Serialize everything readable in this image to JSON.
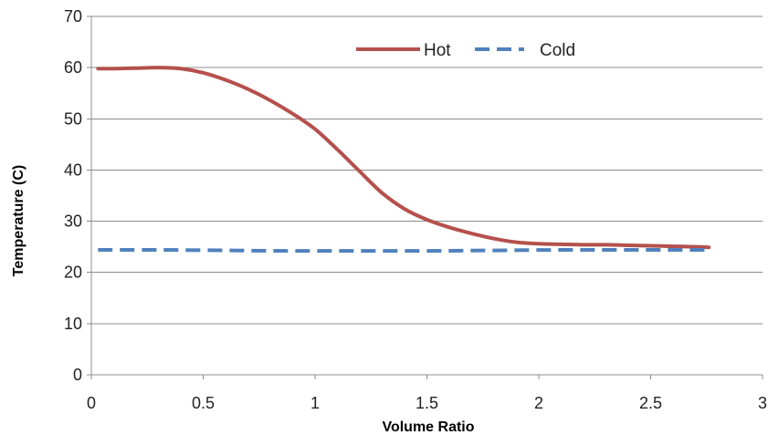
{
  "chart_data": {
    "type": "line",
    "title": "",
    "xlabel": "Volume Ratio",
    "ylabel": "Temperature (C)",
    "xlim": [
      0,
      3
    ],
    "ylim": [
      0,
      70
    ],
    "x_ticks": [
      0,
      0.5,
      1,
      1.5,
      2,
      2.5,
      3
    ],
    "x_tick_labels": [
      "0",
      "0.5",
      "1",
      "1.5",
      "2",
      "2.5",
      "3"
    ],
    "y_ticks": [
      0,
      10,
      20,
      30,
      40,
      50,
      60,
      70
    ],
    "y_tick_labels": [
      "0",
      "10",
      "20",
      "30",
      "40",
      "50",
      "60",
      "70"
    ],
    "grid": "horizontal",
    "legend_position": "top-right",
    "series": [
      {
        "name": "Hot",
        "color": "#b5504c",
        "style": "solid",
        "x": [
          0.03,
          0.1,
          0.2,
          0.3,
          0.4,
          0.5,
          0.6,
          0.7,
          0.8,
          0.9,
          1.0,
          1.1,
          1.2,
          1.3,
          1.4,
          1.5,
          1.6,
          1.7,
          1.8,
          1.9,
          2.0,
          2.1,
          2.2,
          2.3,
          2.4,
          2.5,
          2.6,
          2.7,
          2.76
        ],
        "y": [
          59.8,
          59.8,
          59.9,
          60.0,
          59.8,
          59.0,
          57.6,
          55.8,
          53.6,
          51.0,
          48.0,
          44.0,
          39.7,
          35.5,
          32.4,
          30.3,
          28.8,
          27.6,
          26.6,
          25.9,
          25.6,
          25.5,
          25.4,
          25.4,
          25.3,
          25.2,
          25.1,
          25.0,
          24.9
        ]
      },
      {
        "name": "Cold",
        "color": "#4f81bd",
        "style": "dashed",
        "x": [
          0.03,
          0.3,
          0.6,
          0.9,
          1.2,
          1.5,
          1.8,
          2.1,
          2.4,
          2.76
        ],
        "y": [
          24.4,
          24.4,
          24.3,
          24.2,
          24.2,
          24.2,
          24.3,
          24.4,
          24.4,
          24.4
        ]
      }
    ]
  }
}
